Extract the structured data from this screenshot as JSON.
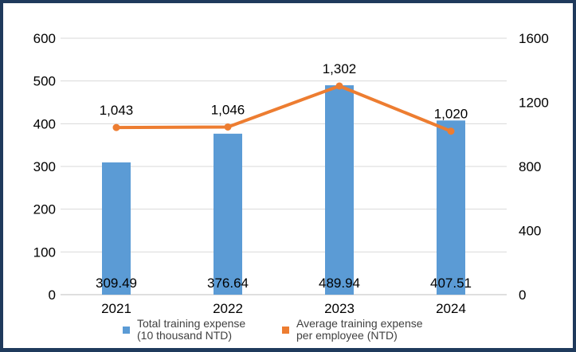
{
  "chart_data": {
    "type": "bar",
    "categories": [
      "2021",
      "2022",
      "2023",
      "2024"
    ],
    "series": [
      {
        "name": "Total training expense (10 thousand NTD)",
        "legend_lines": [
          "Total training expense",
          "(10 thousand NTD)"
        ],
        "type": "bar",
        "axis": "left",
        "color": "#5b9bd5",
        "values": [
          309.49,
          376.64,
          489.94,
          407.51
        ],
        "labels": [
          "309.49",
          "376.64",
          "489.94",
          "407.51"
        ]
      },
      {
        "name": "Average training expense per employee (NTD)",
        "legend_lines": [
          "Average training expense",
          "per employee (NTD)"
        ],
        "type": "line",
        "axis": "right",
        "color": "#ed7d31",
        "values": [
          1043,
          1046,
          1302,
          1020
        ],
        "labels": [
          "1,043",
          "1,046",
          "1,302",
          "1,020"
        ]
      }
    ],
    "ylim_left": [
      0,
      600
    ],
    "yticks_left": [
      0,
      100,
      200,
      300,
      400,
      500,
      600
    ],
    "ylim_right": [
      0,
      1600
    ],
    "yticks_right": [
      0,
      400,
      800,
      1200,
      1600
    ],
    "grid": true,
    "legend_position": "bottom"
  }
}
